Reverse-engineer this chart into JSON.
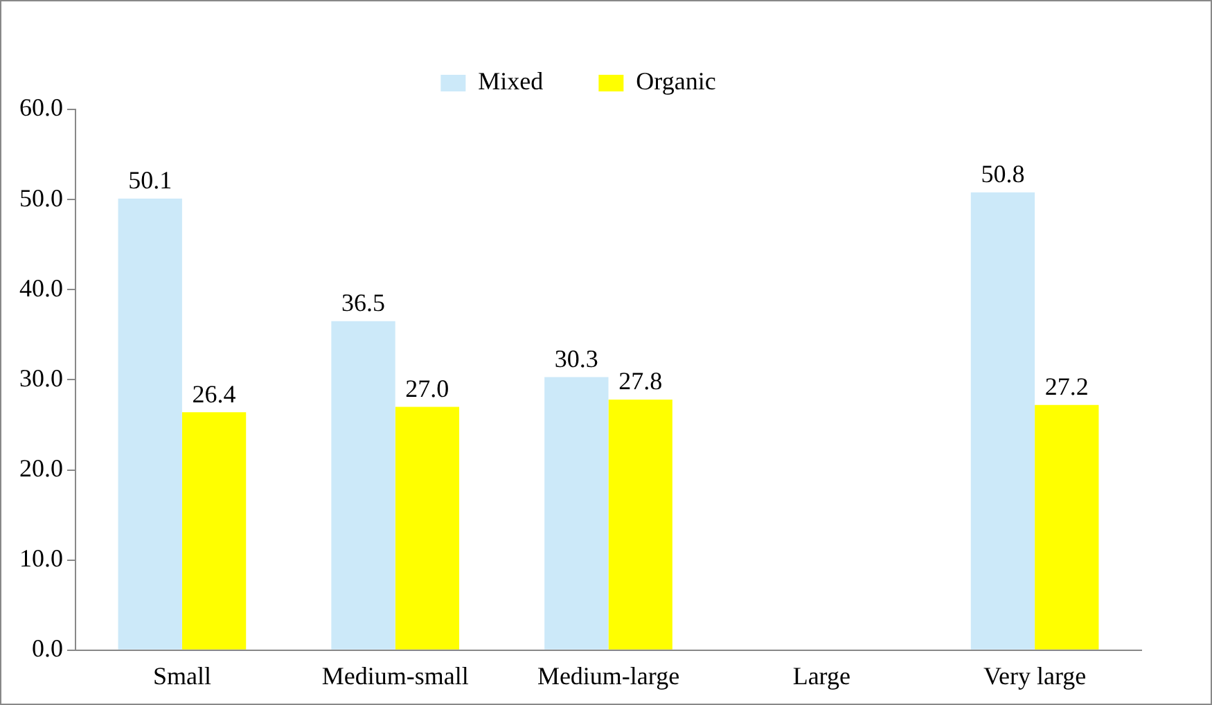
{
  "chart_data": {
    "type": "bar",
    "categories": [
      "Small",
      "Medium-small",
      "Medium-large",
      "Large",
      "Very large"
    ],
    "series": [
      {
        "name": "Mixed",
        "color": "#cce9f9",
        "values": [
          50.1,
          36.5,
          30.3,
          null,
          50.8
        ],
        "value_labels": [
          "50.1",
          "36.5",
          "30.3",
          null,
          "50.8"
        ]
      },
      {
        "name": "Organic",
        "color": "#ffff00",
        "values": [
          26.4,
          27.0,
          27.8,
          null,
          27.2
        ],
        "value_labels": [
          "26.4",
          "27.0",
          "27.8",
          null,
          "27.2"
        ]
      }
    ],
    "ylim": [
      0,
      60
    ],
    "yticks": [
      {
        "value": 0,
        "label": "0.0"
      },
      {
        "value": 10,
        "label": "10.0"
      },
      {
        "value": 20,
        "label": "20.0"
      },
      {
        "value": 30,
        "label": "30.0"
      },
      {
        "value": 40,
        "label": "40.0"
      },
      {
        "value": 50,
        "label": "50.0"
      },
      {
        "value": 60,
        "label": "60.0"
      }
    ],
    "grid": false,
    "legend": "top"
  }
}
